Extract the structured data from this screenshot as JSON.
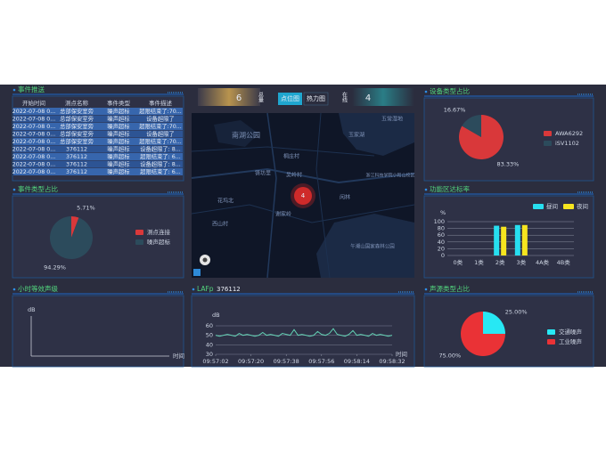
{
  "header": {
    "total": 6,
    "total_label": "总量",
    "buttons": [
      "点位图",
      "热力图"
    ],
    "online_label": "在线",
    "online": 4
  },
  "event_table": {
    "title": "事件推送",
    "columns": [
      "开始时间",
      "测点名称",
      "事件类型",
      "事件描述"
    ],
    "rows": [
      [
        "2022-07-08 0...",
        "总部保安室旁",
        "噪声超标",
        "超限结束了:70..."
      ],
      [
        "2022-07-08 0...",
        "总部保安室旁",
        "噪声超标",
        "设备超限了"
      ],
      [
        "2022-07-08 0...",
        "总部保安室旁",
        "噪声超标",
        "超限结束了:70..."
      ],
      [
        "2022-07-08 0...",
        "总部保安室旁",
        "噪声超标",
        "设备超限了"
      ],
      [
        "2022-07-08 0...",
        "总部保安室旁",
        "噪声超标",
        "超限结束了:70..."
      ],
      [
        "2022-07-08 0...",
        "376112",
        "噪声超标",
        "设备超限了: 8..."
      ],
      [
        "2022-07-08 0...",
        "376112",
        "噪声超标",
        "超限结束了: 6..."
      ],
      [
        "2022-07-08 0...",
        "376112",
        "噪声超标",
        "设备超限了: 8..."
      ],
      [
        "2022-07-08 0...",
        "376112",
        "噪声超标",
        "超限结束了: 6..."
      ]
    ]
  },
  "map": {
    "labels": [
      "南湖公园",
      "五常湿地",
      "玉家湖",
      "桐庄村",
      "铸坊里",
      "吴岭村",
      "浙江科技学院小和山校区",
      "花坞北",
      "西山村",
      "谢家岭",
      "闲林",
      "午潮山国家森林公园"
    ],
    "marker": "4"
  },
  "chart_data": [
    {
      "type": "pie",
      "title": "事件类型占比",
      "categories": [
        "测点连接",
        "噪声超标"
      ],
      "values": [
        5.71,
        94.29
      ],
      "value_labels": [
        "5.71%",
        "94.29%"
      ],
      "colors": [
        "#d9383a",
        "#2c4b5c"
      ]
    },
    {
      "type": "line",
      "title": "小时等效声级",
      "y_label": "dB",
      "x_label": "时间"
    },
    {
      "type": "line",
      "title": "LAFp",
      "subtitle": "376112",
      "y_label": "dB",
      "x_label": "时间",
      "color": "#62d2b4",
      "categories": [
        "09:57:02",
        null,
        null,
        null,
        null,
        null,
        null,
        null,
        null,
        "09:57:20",
        null,
        null,
        null,
        null,
        null,
        null,
        null,
        null,
        "09:57:38",
        null,
        null,
        null,
        null,
        null,
        null,
        null,
        null,
        "09:57:56",
        null,
        null,
        null,
        null,
        null,
        null,
        null,
        null,
        "09:58:14",
        null,
        null,
        null,
        null,
        null,
        null,
        null,
        null,
        "09:58:32"
      ],
      "values": [
        50,
        49,
        50,
        51,
        50,
        49,
        52,
        50,
        51,
        50,
        49,
        50,
        53,
        50,
        51,
        50,
        49,
        52,
        51,
        50,
        56,
        50,
        51,
        50,
        49,
        50,
        54,
        51,
        50,
        52,
        57,
        51,
        50,
        49,
        51,
        55,
        50,
        51,
        50,
        49,
        52,
        50,
        51,
        50,
        49,
        50
      ],
      "ylim": [
        30,
        60
      ],
      "yticks": [
        30,
        40,
        50,
        60
      ],
      "grid": true
    },
    {
      "type": "pie",
      "title": "设备类型占比",
      "categories": [
        "AWA6292",
        "iSV1102"
      ],
      "values": [
        83.33,
        16.67
      ],
      "value_labels": [
        "83.33%",
        "16.67%"
      ],
      "colors": [
        "#d9383a",
        "#2c4b5c"
      ]
    },
    {
      "type": "bar",
      "title": "功能区达标率",
      "y_label": "%",
      "categories": [
        "0类",
        "1类",
        "2类",
        "3类",
        "4A类",
        "4B类"
      ],
      "series": [
        {
          "name": "昼间",
          "color": "#27dff0",
          "values": [
            0,
            0,
            88,
            90,
            0,
            0
          ]
        },
        {
          "name": "夜间",
          "color": "#f6e51f",
          "values": [
            0,
            0,
            85,
            90,
            0,
            0
          ]
        }
      ],
      "ylim": [
        0,
        100
      ],
      "yticks": [
        0,
        20,
        40,
        60,
        80,
        100
      ],
      "grid": true
    },
    {
      "type": "pie",
      "title": "声源类型占比",
      "categories": [
        "交通噪声",
        "工业噪声"
      ],
      "values": [
        25,
        75
      ],
      "value_labels": [
        "25.00%",
        "75.00%"
      ],
      "colors": [
        "#27e8f4",
        "#ea3236"
      ]
    }
  ]
}
